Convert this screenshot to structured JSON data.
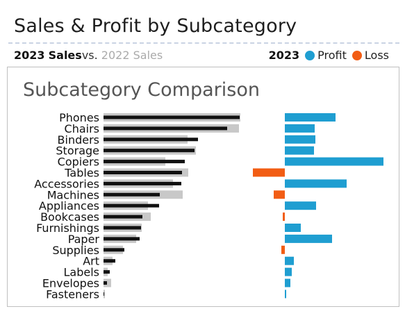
{
  "header": {
    "title": "Sales & Profit by Subcategory",
    "year_current": "2023",
    "sales_label": "Sales",
    "vs_label": "vs.",
    "year_prior": "2022",
    "prior_sales_label": "Sales",
    "legend_year": "2023",
    "profit_label": "Profit",
    "loss_label": "Loss"
  },
  "panel": {
    "title": "Subcategory Comparison"
  },
  "colors": {
    "sales_2023": "#111111",
    "sales_2022": "#c8c8c8",
    "profit": "#1f9ed1",
    "loss": "#f25d14"
  },
  "chart_data": [
    {
      "type": "bar",
      "orientation": "horizontal",
      "categories": [
        "Phones",
        "Chairs",
        "Binders",
        "Storage",
        "Copiers",
        "Tables",
        "Accessories",
        "Machines",
        "Appliances",
        "Bookcases",
        "Furnishings",
        "Paper",
        "Supplies",
        "Art",
        "Labels",
        "Envelopes",
        "Fasteners"
      ],
      "series": [
        {
          "name": "2023 Sales",
          "values": [
            196,
            178,
            136,
            131,
            117,
            113,
            112,
            81,
            80,
            56,
            54,
            52,
            30,
            17,
            9,
            5,
            1
          ]
        },
        {
          "name": "2022 Sales",
          "values": [
            197,
            195,
            121,
            133,
            89,
            122,
            100,
            114,
            64,
            68,
            55,
            47,
            28,
            13,
            6,
            11,
            2
          ]
        }
      ]
    },
    {
      "type": "bar",
      "orientation": "horizontal",
      "categories": [
        "Phones",
        "Chairs",
        "Binders",
        "Storage",
        "Copiers",
        "Tables",
        "Accessories",
        "Machines",
        "Appliances",
        "Bookcases",
        "Furnishings",
        "Paper",
        "Supplies",
        "Art",
        "Labels",
        "Envelopes",
        "Fasteners"
      ],
      "series": [
        {
          "name": "2023 Profit",
          "values": [
            73,
            43,
            44,
            42,
            142,
            -46,
            89,
            -16,
            45,
            -3,
            23,
            68,
            -5,
            13,
            10,
            8,
            2
          ]
        }
      ]
    }
  ]
}
